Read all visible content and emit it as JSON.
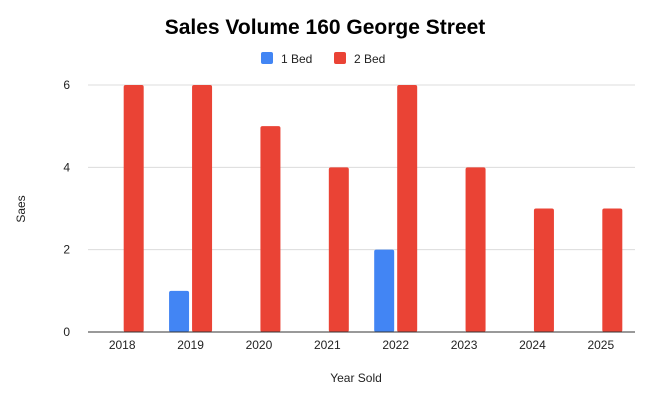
{
  "chart_data": {
    "type": "bar",
    "title": "Sales Volume 160 George Street",
    "xlabel": "Year Sold",
    "ylabel": "Saes",
    "categories": [
      "2018",
      "2019",
      "2020",
      "2021",
      "2022",
      "2023",
      "2024",
      "2025"
    ],
    "series": [
      {
        "name": "1 Bed",
        "color": "#4285f4",
        "values": [
          0,
          1,
          0,
          0,
          2,
          0,
          0,
          0
        ]
      },
      {
        "name": "2 Bed",
        "color": "#ea4335",
        "values": [
          6,
          6,
          5,
          4,
          6,
          4,
          3,
          3
        ]
      }
    ],
    "ylim": [
      0,
      6
    ],
    "yticks": [
      "0",
      "2",
      "4",
      "6"
    ],
    "grid": true,
    "legend_position": "top"
  }
}
